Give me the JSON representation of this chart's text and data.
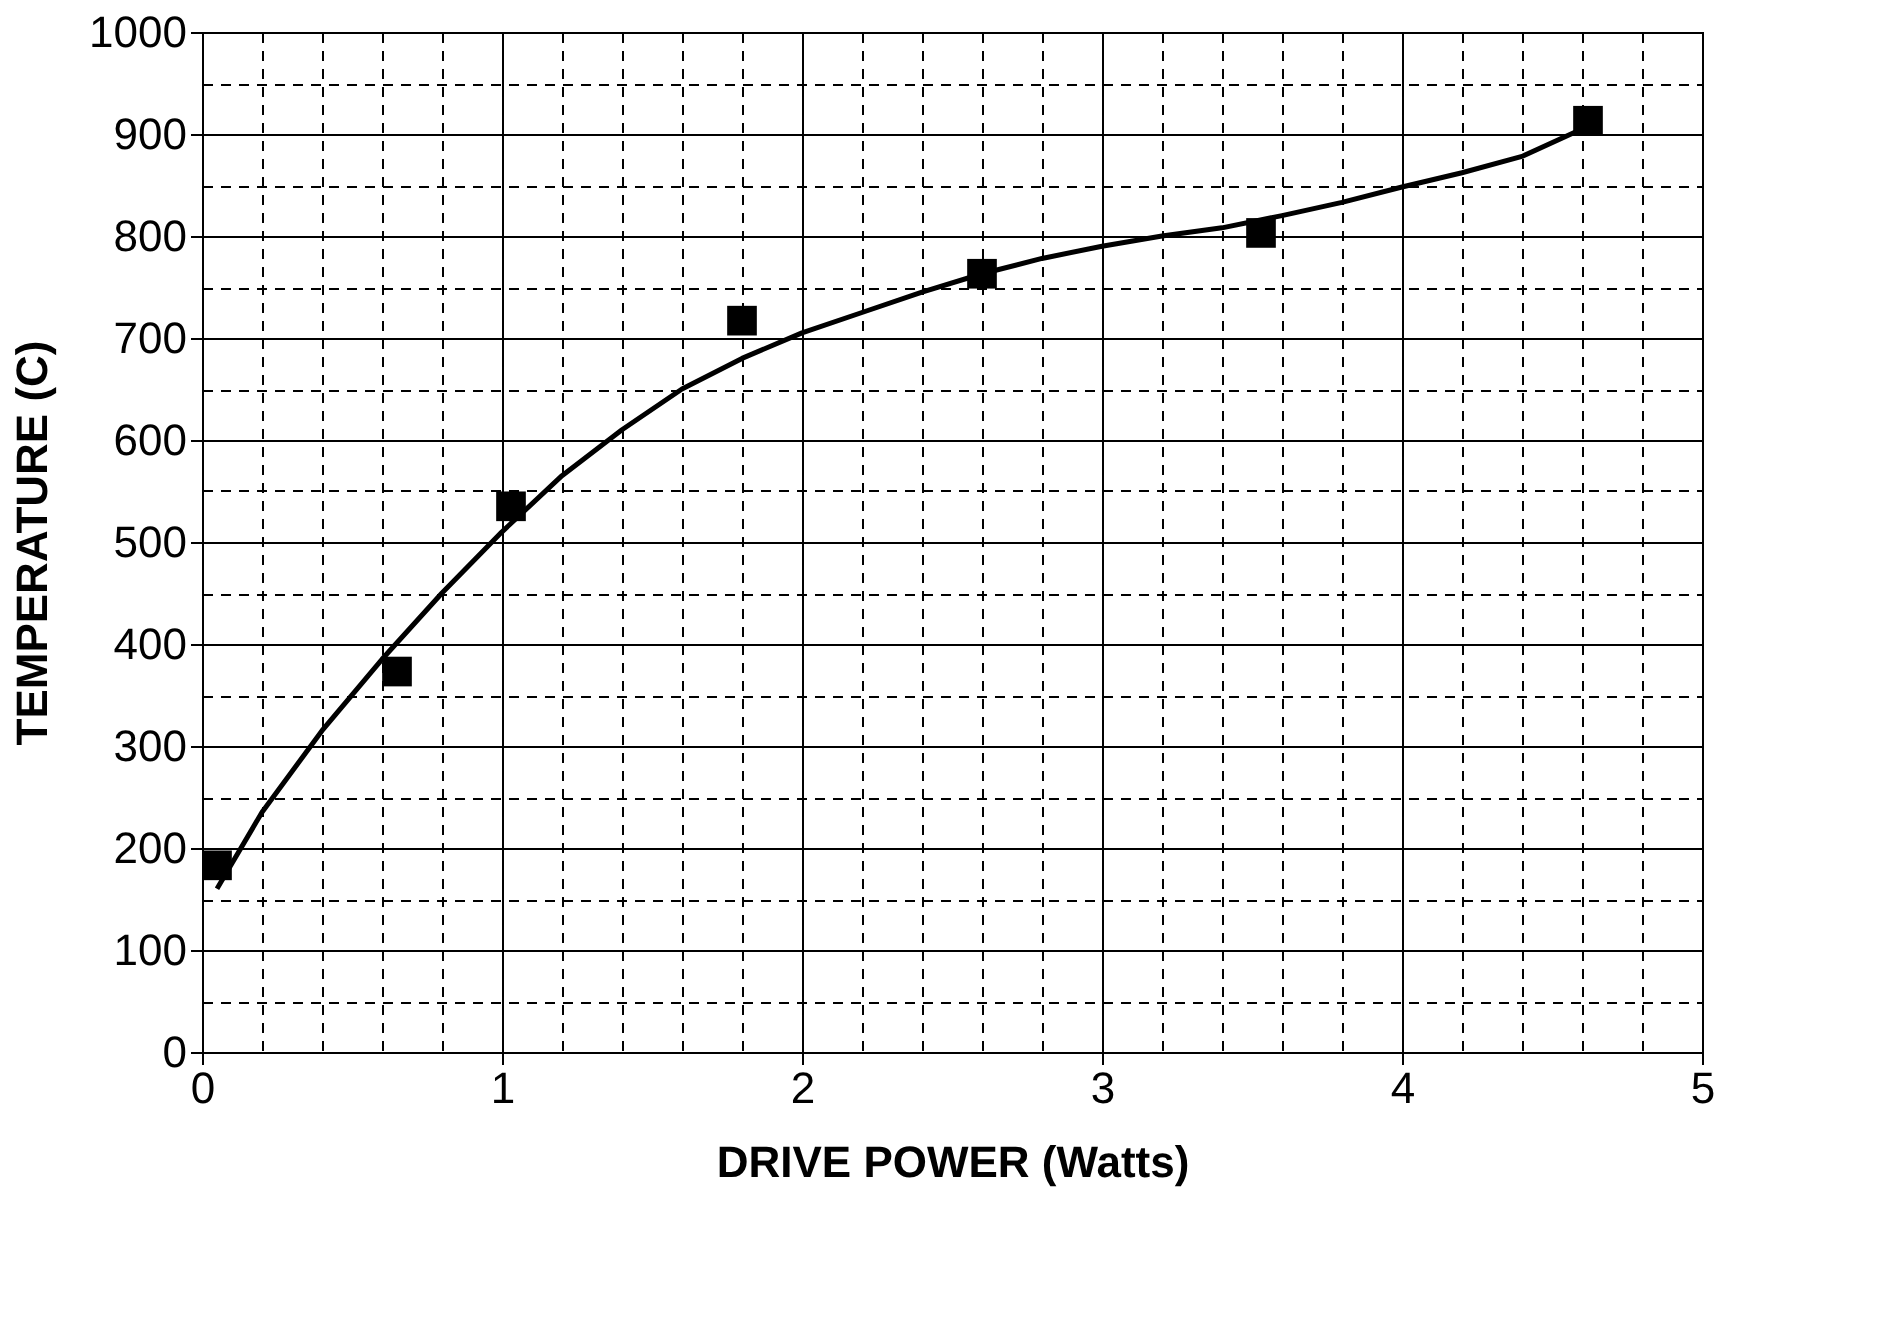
{
  "chart_data": {
    "type": "scatter",
    "xlabel": "DRIVE POWER (Watts)",
    "ylabel": "TEMPERATURE (C)",
    "xlim": [
      0,
      5
    ],
    "ylim": [
      0,
      1000
    ],
    "xticks": [
      0,
      {
        "value": 0.2,
        "label": null
      },
      {
        "value": 0.4,
        "label": null
      },
      {
        "value": 0.6,
        "label": null
      },
      {
        "value": 0.8,
        "label": null
      },
      1,
      {
        "value": 1.2,
        "label": null
      },
      {
        "value": 1.4,
        "label": null
      },
      {
        "value": 1.6,
        "label": null
      },
      {
        "value": 1.8,
        "label": null
      },
      2,
      {
        "value": 2.2,
        "label": null
      },
      {
        "value": 2.4,
        "label": null
      },
      {
        "value": 2.6,
        "label": null
      },
      {
        "value": 2.8,
        "label": null
      },
      3,
      {
        "value": 3.2,
        "label": null
      },
      {
        "value": 3.4,
        "label": null
      },
      {
        "value": 3.6,
        "label": null
      },
      {
        "value": 3.8,
        "label": null
      },
      4,
      {
        "value": 4.2,
        "label": null
      },
      {
        "value": 4.4,
        "label": null
      },
      {
        "value": 4.6,
        "label": null
      },
      {
        "value": 4.8,
        "label": null
      },
      5
    ],
    "yticks": [
      0,
      {
        "value": 50,
        "label": null
      },
      100,
      {
        "value": 150,
        "label": null
      },
      200,
      {
        "value": 250,
        "label": null
      },
      300,
      {
        "value": 350,
        "label": null
      },
      400,
      {
        "value": 450,
        "label": null
      },
      500,
      {
        "value": 550,
        "label": null
      },
      600,
      {
        "value": 650,
        "label": null
      },
      700,
      {
        "value": 750,
        "label": null
      },
      800,
      {
        "value": 850,
        "label": null
      },
      900,
      {
        "value": 950,
        "label": null
      },
      1000
    ],
    "grid": true,
    "series": [
      {
        "type": "line",
        "color": "#000000",
        "marker": "none",
        "line_style": "solid",
        "x": [
          0.05,
          0.1,
          0.2,
          0.4,
          0.6,
          0.8,
          1.0,
          1.2,
          1.4,
          1.6,
          1.8,
          2.0,
          2.2,
          2.4,
          2.6,
          2.8,
          3.0,
          3.2,
          3.4,
          3.6,
          3.8,
          4.0,
          4.2,
          4.4,
          4.6
        ],
        "values": [
          160,
          185,
          235,
          315,
          385,
          450,
          510,
          565,
          610,
          650,
          680,
          705,
          725,
          745,
          763,
          778,
          790,
          800,
          808,
          820,
          833,
          848,
          862,
          878,
          905
        ]
      },
      {
        "type": "scatter",
        "color": "#000000",
        "marker": "square",
        "x": [
          0.05,
          0.65,
          1.03,
          1.8,
          2.6,
          3.53,
          4.62
        ],
        "values": [
          183,
          373,
          535,
          717,
          763,
          803,
          913
        ]
      }
    ]
  }
}
